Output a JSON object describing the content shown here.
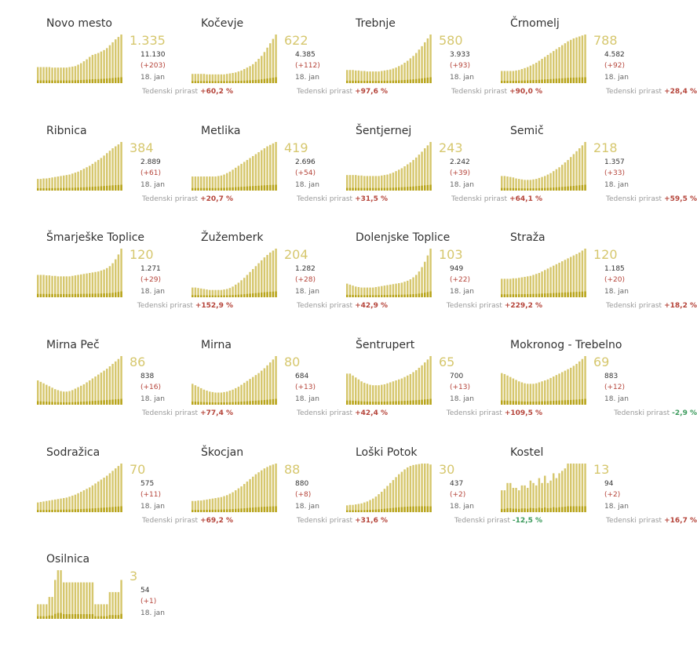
{
  "colors": {
    "bar": "#d6c76e",
    "recent": "#b8a41a",
    "positive": "#b5443a",
    "negative": "#3a9a5b",
    "accent": "#d6c76e"
  },
  "labels": {
    "growth": "Tedenski prirast",
    "date": "18. jan"
  },
  "chart_data": [
    {
      "type": "bar",
      "title": "Novo mesto",
      "active": "1.335",
      "total": "11.130",
      "delta": "(+203)",
      "growth": "+60,2 %",
      "trend": "up",
      "values": [
        0.33,
        0.33,
        0.33,
        0.33,
        0.33,
        0.32,
        0.32,
        0.32,
        0.32,
        0.32,
        0.32,
        0.33,
        0.34,
        0.35,
        0.38,
        0.41,
        0.45,
        0.49,
        0.54,
        0.58,
        0.6,
        0.62,
        0.65,
        0.68,
        0.72,
        0.78,
        0.84,
        0.9,
        0.95,
        1.0
      ]
    },
    {
      "type": "bar",
      "title": "Kočevje",
      "active": "622",
      "total": "4.385",
      "delta": "(+112)",
      "growth": "+97,6 %",
      "trend": "up",
      "values": [
        0.19,
        0.19,
        0.19,
        0.19,
        0.19,
        0.18,
        0.18,
        0.18,
        0.18,
        0.18,
        0.18,
        0.18,
        0.19,
        0.2,
        0.21,
        0.22,
        0.24,
        0.26,
        0.29,
        0.32,
        0.35,
        0.39,
        0.44,
        0.5,
        0.56,
        0.64,
        0.73,
        0.82,
        0.91,
        1.0
      ]
    },
    {
      "type": "bar",
      "title": "Trebnje",
      "active": "580",
      "total": "3.933",
      "delta": "(+93)",
      "growth": "+90,0 %",
      "trend": "up",
      "values": [
        0.27,
        0.27,
        0.27,
        0.26,
        0.26,
        0.25,
        0.25,
        0.24,
        0.24,
        0.24,
        0.24,
        0.24,
        0.25,
        0.26,
        0.27,
        0.28,
        0.3,
        0.32,
        0.35,
        0.38,
        0.42,
        0.46,
        0.51,
        0.56,
        0.62,
        0.69,
        0.76,
        0.84,
        0.92,
        1.0
      ]
    },
    {
      "type": "bar",
      "title": "Črnomelj",
      "active": "788",
      "total": "4.582",
      "delta": "(+92)",
      "growth": "+28,4 %",
      "trend": "up",
      "values": [
        0.25,
        0.25,
        0.25,
        0.25,
        0.25,
        0.26,
        0.27,
        0.29,
        0.31,
        0.33,
        0.36,
        0.39,
        0.42,
        0.46,
        0.5,
        0.54,
        0.58,
        0.62,
        0.66,
        0.7,
        0.74,
        0.78,
        0.82,
        0.86,
        0.89,
        0.92,
        0.94,
        0.96,
        0.98,
        1.0
      ]
    },
    {
      "type": "bar",
      "title": "Ribnica",
      "active": "384",
      "total": "2.889",
      "delta": "(+61)",
      "growth": "+20,7 %",
      "trend": "up",
      "values": [
        0.24,
        0.24,
        0.25,
        0.25,
        0.26,
        0.27,
        0.28,
        0.29,
        0.3,
        0.31,
        0.32,
        0.33,
        0.35,
        0.37,
        0.39,
        0.42,
        0.45,
        0.48,
        0.51,
        0.55,
        0.59,
        0.63,
        0.67,
        0.72,
        0.77,
        0.82,
        0.87,
        0.91,
        0.95,
        1.0
      ]
    },
    {
      "type": "bar",
      "title": "Metlika",
      "active": "419",
      "total": "2.696",
      "delta": "(+54)",
      "growth": "+31,5 %",
      "trend": "up",
      "values": [
        0.29,
        0.29,
        0.29,
        0.29,
        0.29,
        0.29,
        0.29,
        0.29,
        0.29,
        0.3,
        0.31,
        0.33,
        0.36,
        0.39,
        0.43,
        0.47,
        0.51,
        0.55,
        0.59,
        0.63,
        0.67,
        0.71,
        0.75,
        0.79,
        0.83,
        0.87,
        0.91,
        0.94,
        0.97,
        1.0
      ]
    },
    {
      "type": "bar",
      "title": "Šentjernej",
      "active": "243",
      "total": "2.242",
      "delta": "(+39)",
      "growth": "+64,1 %",
      "trend": "up",
      "values": [
        0.32,
        0.32,
        0.32,
        0.32,
        0.31,
        0.31,
        0.3,
        0.3,
        0.3,
        0.3,
        0.3,
        0.3,
        0.31,
        0.32,
        0.33,
        0.35,
        0.37,
        0.4,
        0.43,
        0.46,
        0.5,
        0.54,
        0.58,
        0.63,
        0.68,
        0.74,
        0.8,
        0.87,
        0.93,
        1.0
      ]
    },
    {
      "type": "bar",
      "title": "Semič",
      "active": "218",
      "total": "1.357",
      "delta": "(+33)",
      "growth": "+59,5 %",
      "trend": "up",
      "values": [
        0.3,
        0.3,
        0.29,
        0.28,
        0.27,
        0.25,
        0.24,
        0.23,
        0.22,
        0.22,
        0.22,
        0.23,
        0.24,
        0.26,
        0.28,
        0.3,
        0.33,
        0.36,
        0.4,
        0.44,
        0.48,
        0.53,
        0.58,
        0.63,
        0.69,
        0.75,
        0.81,
        0.87,
        0.93,
        1.0
      ]
    },
    {
      "type": "bar",
      "title": "Šmarješke Toplice",
      "active": "120",
      "total": "1.271",
      "delta": "(+29)",
      "growth": "+152,9 %",
      "trend": "up",
      "values": [
        0.46,
        0.46,
        0.46,
        0.45,
        0.45,
        0.44,
        0.44,
        0.43,
        0.43,
        0.43,
        0.43,
        0.43,
        0.44,
        0.45,
        0.46,
        0.47,
        0.48,
        0.49,
        0.5,
        0.51,
        0.52,
        0.53,
        0.55,
        0.57,
        0.6,
        0.64,
        0.7,
        0.78,
        0.88,
        1.0
      ]
    },
    {
      "type": "bar",
      "title": "Žužemberk",
      "active": "204",
      "total": "1.282",
      "delta": "(+28)",
      "growth": "+42,9 %",
      "trend": "up",
      "values": [
        0.2,
        0.2,
        0.19,
        0.18,
        0.17,
        0.16,
        0.15,
        0.15,
        0.15,
        0.15,
        0.15,
        0.16,
        0.17,
        0.19,
        0.22,
        0.26,
        0.3,
        0.35,
        0.4,
        0.46,
        0.52,
        0.58,
        0.64,
        0.7,
        0.76,
        0.82,
        0.87,
        0.92,
        0.96,
        1.0
      ]
    },
    {
      "type": "bar",
      "title": "Dolenjske Toplice",
      "active": "103",
      "total": "949",
      "delta": "(+22)",
      "growth": "+229,2 %",
      "trend": "up",
      "values": [
        0.28,
        0.26,
        0.24,
        0.22,
        0.21,
        0.2,
        0.2,
        0.2,
        0.2,
        0.2,
        0.21,
        0.22,
        0.23,
        0.24,
        0.25,
        0.26,
        0.27,
        0.28,
        0.29,
        0.3,
        0.32,
        0.34,
        0.37,
        0.41,
        0.46,
        0.53,
        0.62,
        0.73,
        0.86,
        1.0
      ]
    },
    {
      "type": "bar",
      "title": "Straža",
      "active": "120",
      "total": "1.185",
      "delta": "(+20)",
      "growth": "+18,2 %",
      "trend": "up",
      "values": [
        0.38,
        0.38,
        0.38,
        0.38,
        0.39,
        0.39,
        0.4,
        0.41,
        0.42,
        0.43,
        0.44,
        0.46,
        0.48,
        0.5,
        0.53,
        0.56,
        0.59,
        0.62,
        0.65,
        0.68,
        0.71,
        0.74,
        0.77,
        0.8,
        0.83,
        0.86,
        0.89,
        0.92,
        0.96,
        1.0
      ]
    },
    {
      "type": "bar",
      "title": "Mirna Peč",
      "active": "86",
      "total": "838",
      "delta": "(+16)",
      "growth": "+77,4 %",
      "trend": "up",
      "values": [
        0.5,
        0.47,
        0.44,
        0.41,
        0.38,
        0.35,
        0.32,
        0.3,
        0.28,
        0.27,
        0.27,
        0.28,
        0.3,
        0.33,
        0.36,
        0.39,
        0.42,
        0.46,
        0.5,
        0.54,
        0.58,
        0.62,
        0.66,
        0.7,
        0.74,
        0.79,
        0.84,
        0.89,
        0.94,
        1.0
      ]
    },
    {
      "type": "bar",
      "title": "Mirna",
      "active": "80",
      "total": "684",
      "delta": "(+13)",
      "growth": "+42,4 %",
      "trend": "up",
      "values": [
        0.43,
        0.4,
        0.37,
        0.34,
        0.31,
        0.29,
        0.27,
        0.26,
        0.25,
        0.25,
        0.25,
        0.26,
        0.27,
        0.29,
        0.31,
        0.34,
        0.37,
        0.41,
        0.45,
        0.49,
        0.53,
        0.57,
        0.61,
        0.65,
        0.7,
        0.75,
        0.81,
        0.87,
        0.93,
        1.0
      ]
    },
    {
      "type": "bar",
      "title": "Šentrupert",
      "active": "65",
      "total": "700",
      "delta": "(+13)",
      "growth": "+109,5 %",
      "trend": "up",
      "values": [
        0.64,
        0.64,
        0.6,
        0.56,
        0.52,
        0.48,
        0.45,
        0.43,
        0.41,
        0.4,
        0.4,
        0.4,
        0.41,
        0.42,
        0.44,
        0.46,
        0.48,
        0.5,
        0.52,
        0.54,
        0.57,
        0.6,
        0.63,
        0.67,
        0.71,
        0.76,
        0.81,
        0.87,
        0.93,
        1.0
      ]
    },
    {
      "type": "bar",
      "title": "Mokronog - Trebelno",
      "active": "69",
      "total": "883",
      "delta": "(+12)",
      "growth": "-2,9 %",
      "trend": "down",
      "values": [
        0.65,
        0.63,
        0.6,
        0.57,
        0.54,
        0.51,
        0.48,
        0.46,
        0.44,
        0.43,
        0.43,
        0.43,
        0.44,
        0.46,
        0.48,
        0.5,
        0.52,
        0.55,
        0.58,
        0.61,
        0.64,
        0.67,
        0.7,
        0.73,
        0.76,
        0.8,
        0.84,
        0.89,
        0.94,
        1.0
      ]
    },
    {
      "type": "bar",
      "title": "Sodražica",
      "active": "70",
      "total": "575",
      "delta": "(+11)",
      "growth": "+69,2 %",
      "trend": "up",
      "values": [
        0.2,
        0.21,
        0.22,
        0.23,
        0.24,
        0.25,
        0.26,
        0.27,
        0.28,
        0.29,
        0.3,
        0.32,
        0.34,
        0.36,
        0.39,
        0.42,
        0.45,
        0.48,
        0.51,
        0.55,
        0.59,
        0.63,
        0.67,
        0.71,
        0.75,
        0.8,
        0.85,
        0.9,
        0.95,
        1.0
      ]
    },
    {
      "type": "bar",
      "title": "Škocjan",
      "active": "88",
      "total": "880",
      "delta": "(+8)",
      "growth": "+31,6 %",
      "trend": "up",
      "values": [
        0.23,
        0.23,
        0.24,
        0.24,
        0.25,
        0.26,
        0.27,
        0.28,
        0.29,
        0.3,
        0.31,
        0.33,
        0.35,
        0.38,
        0.41,
        0.45,
        0.49,
        0.53,
        0.58,
        0.63,
        0.68,
        0.73,
        0.78,
        0.82,
        0.86,
        0.9,
        0.93,
        0.96,
        0.98,
        1.0
      ]
    },
    {
      "type": "bar",
      "title": "Loški Potok",
      "active": "30",
      "total": "437",
      "delta": "(+2)",
      "growth": "-12,5 %",
      "trend": "down",
      "values": [
        0.14,
        0.15,
        0.15,
        0.16,
        0.17,
        0.18,
        0.2,
        0.22,
        0.25,
        0.28,
        0.32,
        0.37,
        0.42,
        0.48,
        0.54,
        0.6,
        0.66,
        0.72,
        0.78,
        0.83,
        0.88,
        0.92,
        0.95,
        0.97,
        0.98,
        0.99,
        1.0,
        1.0,
        1.0,
        0.98
      ]
    },
    {
      "type": "bar",
      "title": "Kostel",
      "active": "13",
      "total": "94",
      "delta": "(+2)",
      "growth": "+16,7 %",
      "trend": "up",
      "values": [
        0.45,
        0.45,
        0.6,
        0.6,
        0.5,
        0.5,
        0.45,
        0.55,
        0.55,
        0.5,
        0.65,
        0.6,
        0.55,
        0.7,
        0.6,
        0.75,
        0.6,
        0.65,
        0.8,
        0.7,
        0.8,
        0.85,
        0.9,
        1.0,
        1.0,
        1.0,
        1.0,
        1.0,
        1.0,
        1.0
      ]
    },
    {
      "type": "bar",
      "title": "Osilnica",
      "active": "3",
      "total": "54",
      "delta": "(+1)",
      "growth": "",
      "trend": "up",
      "values": [
        0.3,
        0.3,
        0.3,
        0.3,
        0.45,
        0.45,
        0.8,
        1.0,
        1.0,
        0.75,
        0.75,
        0.75,
        0.75,
        0.75,
        0.75,
        0.75,
        0.75,
        0.75,
        0.75,
        0.75,
        0.3,
        0.3,
        0.3,
        0.3,
        0.3,
        0.55,
        0.55,
        0.55,
        0.55,
        0.8
      ]
    }
  ]
}
